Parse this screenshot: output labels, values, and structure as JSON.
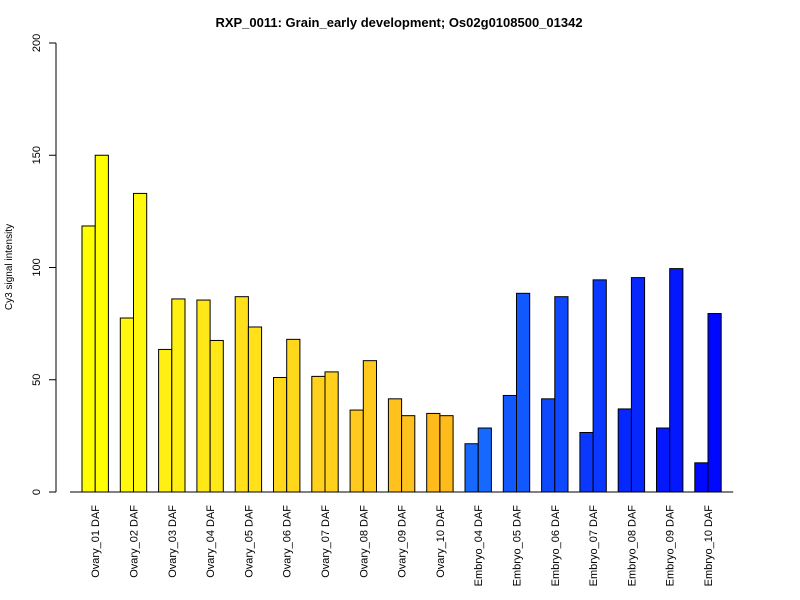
{
  "chart_data": {
    "type": "bar",
    "title": "RXP_0011: Grain_early development; Os02g0108500_01342",
    "ylabel": "Cy3 signal intensity",
    "xlabel": "",
    "ylim": [
      0,
      200
    ],
    "yticks": [
      "0",
      "50",
      "100",
      "150",
      "200"
    ],
    "grid": false,
    "categories": [
      "Ovary_01 DAF",
      "Ovary_02 DAF",
      "Ovary_03 DAF",
      "Ovary_04 DAF",
      "Ovary_05 DAF",
      "Ovary_06 DAF",
      "Ovary_07 DAF",
      "Ovary_08 DAF",
      "Ovary_09 DAF",
      "Ovary_10 DAF",
      "Embryo_04 DAF",
      "Embryo_05 DAF",
      "Embryo_06 DAF",
      "Embryo_07 DAF",
      "Embryo_08 DAF",
      "Embryo_09 DAF",
      "Embryo_10 DAF"
    ],
    "series": [
      {
        "values": [
          118.5,
          77.5,
          63.5,
          85.5,
          87.0,
          51.0,
          51.5,
          36.5,
          41.5,
          35.0,
          21.5,
          43.0,
          41.5,
          26.5,
          37.0,
          28.5,
          13.0
        ]
      },
      {
        "values": [
          150.0,
          133.0,
          86.0,
          67.5,
          73.5,
          68.0,
          53.5,
          58.5,
          34.0,
          34.0,
          28.5,
          88.5,
          87.0,
          94.5,
          95.5,
          99.5,
          79.5
        ]
      }
    ],
    "colors": [
      "#ffff00",
      "#fff70d",
      "#ffef12",
      "#ffe817",
      "#ffe01a",
      "#ffd81c",
      "#ffd11d",
      "#ffc91e",
      "#ffc11e",
      "#ffba1c",
      "#1668ff",
      "#1258ff",
      "#0e48ff",
      "#0a38ff",
      "#0628ff",
      "#0318ff",
      "#0008ff"
    ],
    "bar_outline": "#000000"
  }
}
